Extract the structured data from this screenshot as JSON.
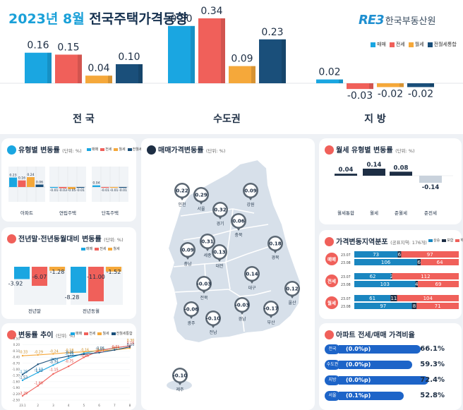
{
  "header": {
    "title_year": "2023년 8월",
    "title_rest": " 전국주택가격동향",
    "logo_mark": "RE3",
    "logo_text": "한국부동산원"
  },
  "legend_top": [
    "매매",
    "전세",
    "월세",
    "전월세통합"
  ],
  "colors": {
    "sale": "#1aa6e1",
    "jeonse": "#f0605a",
    "wolse": "#f5a83a",
    "combined": "#1a4f7a",
    "navy": "#1d2e44"
  },
  "chart_data": [
    {
      "type": "bar",
      "categories": [
        "전 국",
        "수도권",
        "지 방"
      ],
      "series": [
        {
          "name": "매매",
          "values": [
            0.16,
            0.3,
            0.02
          ]
        },
        {
          "name": "전세",
          "values": [
            0.15,
            0.34,
            -0.03
          ]
        },
        {
          "name": "월세",
          "values": [
            0.04,
            0.09,
            -0.02
          ]
        },
        {
          "name": "전월세통합",
          "values": [
            0.1,
            0.23,
            -0.02
          ]
        }
      ],
      "value_labels": [
        [
          "0.16",
          "0.15",
          "0.04",
          "0.10"
        ],
        [
          "0.30",
          "0.34",
          "0.09",
          "0.23"
        ],
        [
          "0.02",
          "-0.03",
          "-0.02",
          "-0.02"
        ]
      ]
    },
    {
      "type": "bar",
      "title": "유형별 변동률",
      "unit": "(단위: %)",
      "legend": [
        "매매",
        "전세",
        "월세",
        "전월세통합"
      ],
      "categories": [
        "아파트",
        "연립주택",
        "단독주택"
      ],
      "series": [
        {
          "name": "매매",
          "values": [
            0.23,
            -0.01,
            0.04
          ]
        },
        {
          "name": "전세",
          "values": [
            0.16,
            -0.03,
            -0.01
          ]
        },
        {
          "name": "월세",
          "values": [
            0.24,
            -0.05,
            -0.01
          ]
        },
        {
          "name": "전월세통합",
          "values": [
            0.06,
            -0.01,
            -0.01
          ]
        }
      ],
      "value_labels": [
        [
          "0.23",
          "0.16",
          "0.24",
          "0.06"
        ],
        [
          "-0.01",
          "-0.03",
          "-0.05",
          "-0.01"
        ],
        [
          "0.04",
          "-0.01",
          "-0.01",
          "-0.01"
        ]
      ]
    },
    {
      "type": "bar",
      "title": "전년말·전년동월대비 변동률",
      "unit": "(단위: %)",
      "legend": [
        "매매",
        "전세",
        "월세"
      ],
      "categories": [
        "전년말",
        "전년동월"
      ],
      "series": [
        {
          "name": "매매",
          "values": [
            -3.92,
            -8.28
          ]
        },
        {
          "name": "전세",
          "values": [
            -6.07,
            -11.0
          ]
        },
        {
          "name": "월세",
          "values": [
            -1.28,
            -1.52
          ]
        }
      ],
      "value_labels": [
        [
          "-3.92",
          "-6.07",
          "-1.28"
        ],
        [
          "-8.28",
          "-11.00",
          "-1.52"
        ]
      ]
    },
    {
      "type": "line",
      "title": "변동률 추이",
      "unit": "(단위: %)",
      "legend": [
        "매매",
        "전세",
        "월세",
        "전월세통합"
      ],
      "x": [
        "23.1",
        "2",
        "3",
        "4",
        "5",
        "6",
        "7",
        "8"
      ],
      "y_ticks": [
        "0.50",
        "0.20",
        "-0.10",
        "-0.40",
        "-0.70",
        "-1.00",
        "-1.30",
        "-1.60",
        "-1.90",
        "-2.20",
        "-2.50"
      ],
      "ylim": [
        -2.5,
        0.5
      ],
      "series": [
        {
          "name": "매매",
          "values": [
            -1.53,
            -1.15,
            -0.79,
            -0.45,
            -0.21,
            -0.06,
            0.04,
            0.16
          ]
        },
        {
          "name": "전세",
          "values": [
            -2.29,
            -1.8,
            -1.22,
            -0.85,
            -0.41,
            -0.09,
            0.06,
            0.15
          ]
        },
        {
          "name": "월세",
          "values": [
            -0.33,
            -0.29,
            -0.24,
            -0.18,
            -0.14,
            -0.08,
            -0.05,
            0.04
          ]
        },
        {
          "name": "전월세통합",
          "values": [
            -1.25,
            -0.75,
            -0.5,
            -0.35,
            -0.26,
            -0.18,
            -0.05,
            0.1
          ]
        }
      ],
      "value_labels": [
        "-0.33",
        "-0.29",
        "-0.24",
        "-0.18",
        "-0.16",
        "-0.13",
        "-0.05",
        "0.30",
        "-1.53",
        "-1.22",
        "-0.79",
        "-0.26",
        "-0.06",
        "0.10",
        "-2.29",
        "-1.80",
        "-1.15",
        "-0.75",
        "-0.46",
        "-0.21",
        "-0.01",
        "0.16",
        "-1.25",
        "-1.13",
        "-0.64",
        "-0.39"
      ]
    },
    {
      "type": "map",
      "title": "매매가격변동률",
      "unit": "(단위: %)",
      "regions": [
        {
          "name": "인천",
          "value": "0.22"
        },
        {
          "name": "서울",
          "value": "0.29"
        },
        {
          "name": "경기",
          "value": "0.32"
        },
        {
          "name": "강원",
          "value": "0.09"
        },
        {
          "name": "충북",
          "value": "0.06"
        },
        {
          "name": "충남",
          "value": "0.09"
        },
        {
          "name": "세종",
          "value": "0.31"
        },
        {
          "name": "대전",
          "value": "0.13"
        },
        {
          "name": "경북",
          "value": "0.18"
        },
        {
          "name": "대구",
          "value": "0.14"
        },
        {
          "name": "전북",
          "value": "-0.03"
        },
        {
          "name": "울산",
          "value": "0.12"
        },
        {
          "name": "경남",
          "value": "-0.03"
        },
        {
          "name": "부산",
          "value": "-0.17"
        },
        {
          "name": "광주",
          "value": "-0.06"
        },
        {
          "name": "전남",
          "value": "-0.10"
        },
        {
          "name": "제주",
          "value": "-0.10"
        }
      ]
    },
    {
      "type": "bar",
      "title": "월세 유형별 변동률",
      "unit": "(단위: %)",
      "categories": [
        "월세통합",
        "월세",
        "준월세",
        "준전세"
      ],
      "values": [
        0.04,
        0.14,
        0.08,
        -0.14
      ],
      "value_labels": [
        "0.04",
        "0.14",
        "0.08",
        "-0.14"
      ]
    },
    {
      "type": "bar",
      "title": "가격변동지역분포",
      "unit": "(공표지역: 176개)",
      "legend": [
        "상승",
        "보합",
        "하락"
      ],
      "groups": [
        {
          "name": "매매",
          "rows": [
            {
              "period": "23.07",
              "values": [
                73,
                6,
                97
              ]
            },
            {
              "period": "23.08",
              "values": [
                106,
                6,
                64
              ]
            }
          ]
        },
        {
          "name": "전세",
          "rows": [
            {
              "period": "23.07",
              "values": [
                62,
                2,
                112
              ]
            },
            {
              "period": "23.08",
              "values": [
                103,
                4,
                69
              ]
            }
          ]
        },
        {
          "name": "월세",
          "rows": [
            {
              "period": "23.07",
              "values": [
                61,
                11,
                104
              ]
            },
            {
              "period": "23.08",
              "values": [
                97,
                8,
                71
              ]
            }
          ]
        }
      ]
    },
    {
      "type": "bar",
      "title": "아파트 전세/매매 가격비율",
      "rows": [
        {
          "region": "전국",
          "change": "(0.0%p)",
          "value": "66.1%",
          "ratio": 66.1
        },
        {
          "region": "수도권",
          "change": "(0.0%p)",
          "value": "59.3%",
          "ratio": 59.3
        },
        {
          "region": "지방",
          "change": "(0.0%p)",
          "value": "72.4%",
          "ratio": 72.4
        },
        {
          "region": "서울",
          "change": "(0.1%p)",
          "value": "52.8%",
          "ratio": 52.8
        }
      ]
    }
  ]
}
